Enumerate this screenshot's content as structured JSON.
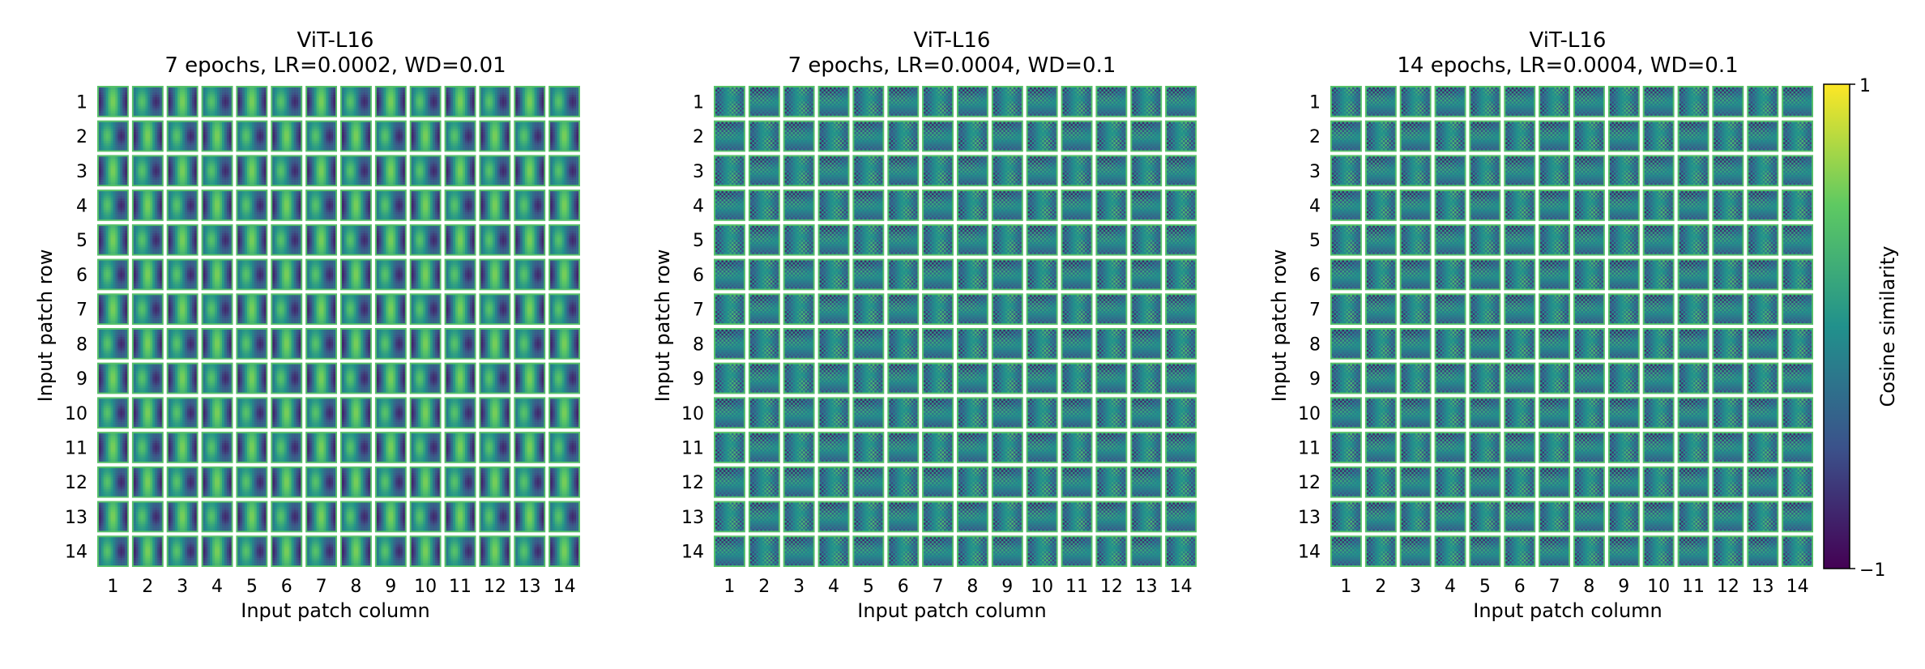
{
  "chart_data": [
    {
      "type": "heatmap",
      "title": "ViT-L16",
      "subtitle": "7 epochs, LR=0.0002, WD=0.01",
      "xlabel": "Input patch column",
      "ylabel": "Input patch row",
      "rows": [
        "1",
        "2",
        "3",
        "4",
        "5",
        "6",
        "7",
        "8",
        "9",
        "10",
        "11",
        "12",
        "13",
        "14"
      ],
      "cols": [
        "1",
        "2",
        "3",
        "4",
        "5",
        "6",
        "7",
        "8",
        "9",
        "10",
        "11",
        "12",
        "13",
        "14"
      ],
      "pattern": "smooth-low-frequency"
    },
    {
      "type": "heatmap",
      "title": "ViT-L16",
      "subtitle": "7 epochs, LR=0.0004, WD=0.1",
      "xlabel": "Input patch column",
      "ylabel": "Input patch row",
      "rows": [
        "1",
        "2",
        "3",
        "4",
        "5",
        "6",
        "7",
        "8",
        "9",
        "10",
        "11",
        "12",
        "13",
        "14"
      ],
      "cols": [
        "1",
        "2",
        "3",
        "4",
        "5",
        "6",
        "7",
        "8",
        "9",
        "10",
        "11",
        "12",
        "13",
        "14"
      ],
      "pattern": "high-frequency-grid"
    },
    {
      "type": "heatmap",
      "title": "ViT-L16",
      "subtitle": "14 epochs, LR=0.0004, WD=0.1",
      "xlabel": "Input patch column",
      "ylabel": "Input patch row",
      "rows": [
        "1",
        "2",
        "3",
        "4",
        "5",
        "6",
        "7",
        "8",
        "9",
        "10",
        "11",
        "12",
        "13",
        "14"
      ],
      "cols": [
        "1",
        "2",
        "3",
        "4",
        "5",
        "6",
        "7",
        "8",
        "9",
        "10",
        "11",
        "12",
        "13",
        "14"
      ],
      "pattern": "high-frequency-grid"
    }
  ],
  "colorbar": {
    "label": "Cosine similarity",
    "max_label": "1",
    "min_label": "−1",
    "range": [
      -1,
      1
    ],
    "colormap": "viridis",
    "colors": [
      "#440154",
      "#3b528b",
      "#21918c",
      "#5ec962",
      "#fde725"
    ]
  }
}
